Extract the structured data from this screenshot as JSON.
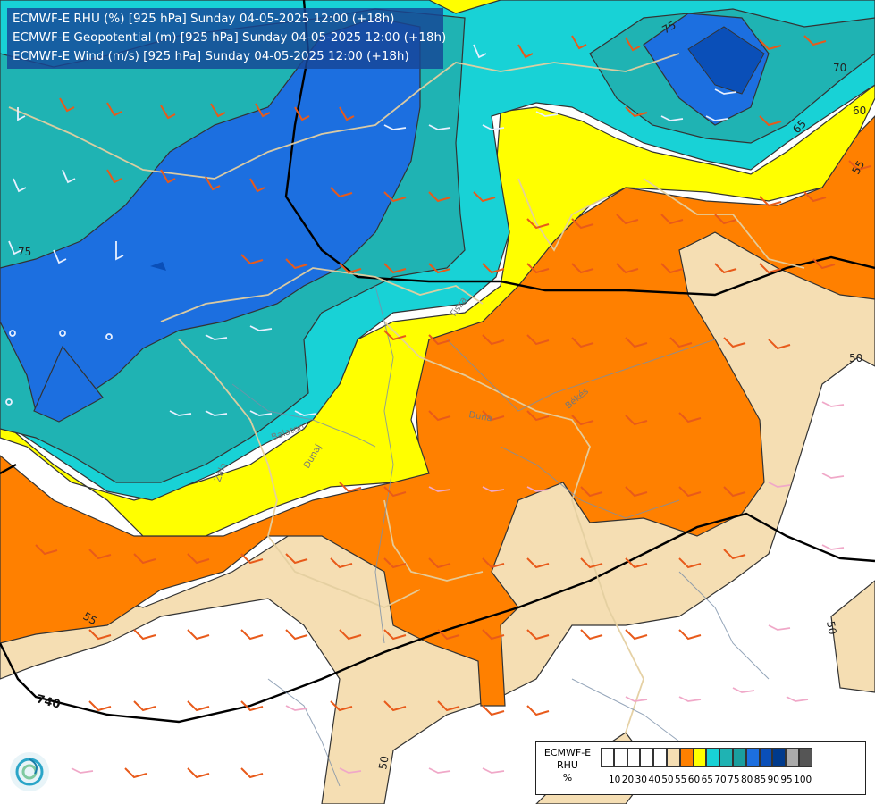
{
  "header": {
    "lines": [
      "ECMWF-E RHU (%) [925 hPa] Sunday 04-05-2025 12:00 (+18h)",
      "ECMWF-E Geopotential (m) [925 hPa] Sunday 04-05-2025 12:00 (+18h)",
      "ECMWF-E Wind (m/s) [925 hPa] Sunday 04-05-2025 12:00 (+18h)"
    ]
  },
  "legend": {
    "title_lines": [
      "ECMWF-E",
      "RHU",
      "%"
    ],
    "colors": [
      "#ffffff",
      "#ffffff",
      "#ffffff",
      "#ffffff",
      "#ffffff",
      "#f5deb3",
      "#ff8000",
      "#ffff00",
      "#18d2d6",
      "#1fb3b3",
      "#1a9e9e",
      "#1c6fe0",
      "#0a4fb8",
      "#003a8c",
      "#aaaaaa",
      "#555555"
    ],
    "tick_labels": [
      "10",
      "20",
      "30",
      "40",
      "50",
      "55",
      "60",
      "65",
      "70",
      "75",
      "80",
      "85",
      "90",
      "95",
      "100"
    ]
  },
  "contour_labels": {
    "rhu": [
      "75",
      "70",
      "65",
      "60",
      "55",
      "55",
      "50",
      "50",
      "75",
      "50"
    ],
    "geopotential": [
      "740"
    ]
  },
  "place_labels": [
    "Tisza",
    "Zala",
    "Balaton",
    "Duna",
    "Dunaj",
    "Békés"
  ]
}
